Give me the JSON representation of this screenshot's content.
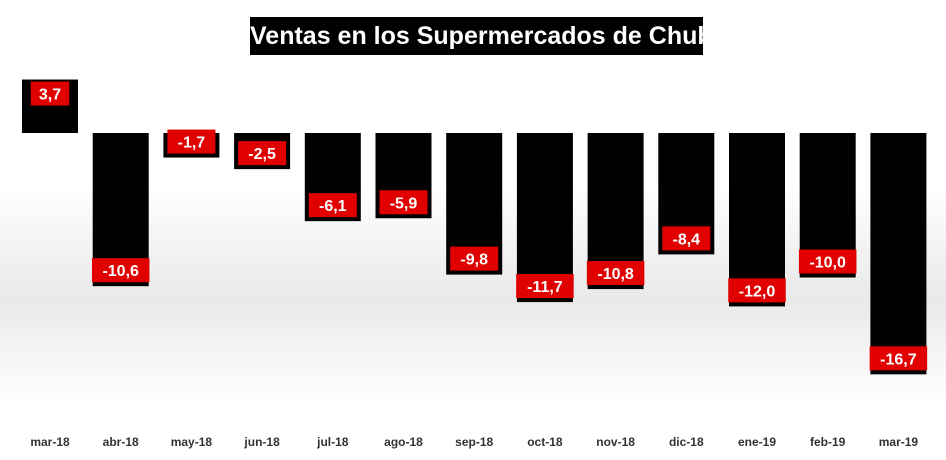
{
  "chart_data": {
    "type": "bar",
    "title": "Ventas en los Supermercados de Chubut",
    "xlabel": "",
    "ylabel": "",
    "categories": [
      "mar-18",
      "abr-18",
      "may-18",
      "jun-18",
      "jul-18",
      "ago-18",
      "sep-18",
      "oct-18",
      "nov-18",
      "dic-18",
      "ene-19",
      "feb-19",
      "mar-19"
    ],
    "values": [
      3.7,
      -10.6,
      -1.7,
      -2.5,
      -6.1,
      -5.9,
      -9.8,
      -11.7,
      -10.8,
      -8.4,
      -12.0,
      -10.0,
      -16.7
    ],
    "data_labels": [
      "3,7",
      "-10,6",
      "-1,7",
      "-2,5",
      "-6,1",
      "-5,9",
      "-9,8",
      "-11,7",
      "-10,8",
      "-8,4",
      "-12,0",
      "-10,0",
      "-16,7"
    ],
    "colors": {
      "bar": "#000000",
      "label_bg": "#e00000",
      "label_text": "#ffffff"
    },
    "grid": false,
    "legend": "none"
  }
}
